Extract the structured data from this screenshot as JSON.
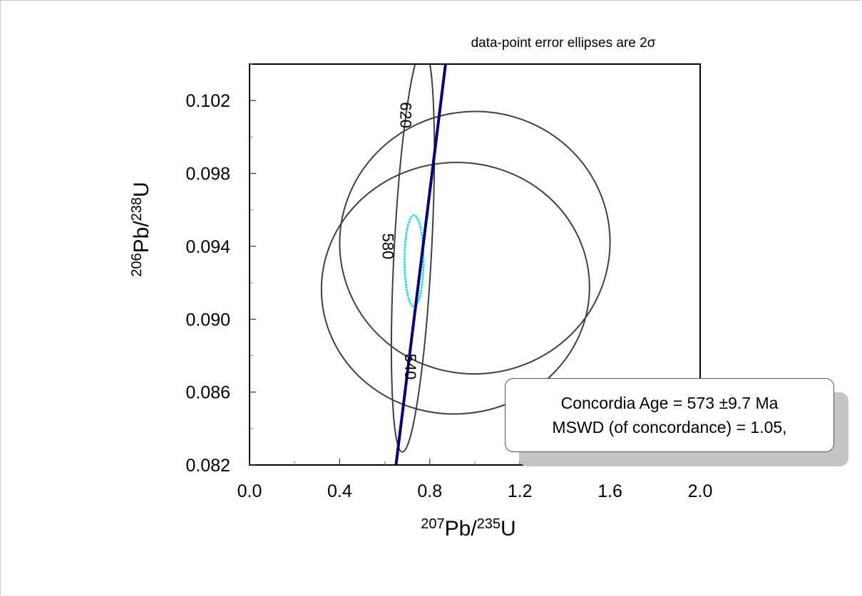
{
  "chart_data": {
    "type": "scatter",
    "title": "data-point error ellipses are 2σ",
    "xlabel": {
      "sup1": "207",
      "main1": "Pb/",
      "sup2": "235",
      "main2": "U"
    },
    "ylabel": {
      "sup1": "206",
      "main1": "Pb/",
      "sup2": "238",
      "main2": "U"
    },
    "xlim": [
      0.0,
      2.0
    ],
    "ylim": [
      0.082,
      0.104
    ],
    "x_ticks": [
      "0.0",
      "0.4",
      "0.8",
      "1.2",
      "1.6",
      "2.0"
    ],
    "x_tick_values": [
      0.0,
      0.4,
      0.8,
      1.2,
      1.6,
      2.0
    ],
    "y_ticks": [
      "0.082",
      "0.086",
      "0.090",
      "0.094",
      "0.098",
      "0.102"
    ],
    "y_tick_values": [
      0.082,
      0.086,
      0.09,
      0.094,
      0.098,
      0.102
    ],
    "concordia_curve": {
      "color": "#000080",
      "points": [
        [
          0.65,
          0.082
        ],
        [
          0.76,
          0.093
        ],
        [
          0.87,
          0.104
        ]
      ],
      "age_labels": [
        {
          "label": "540",
          "x": 0.69,
          "y": 0.0874
        },
        {
          "label": "580",
          "x": 0.59,
          "y": 0.094
        },
        {
          "label": "620",
          "x": 0.67,
          "y": 0.1012
        }
      ]
    },
    "error_ellipses": [
      {
        "cx": 1.0,
        "cy": 0.0942,
        "a": 0.6,
        "b": 0.0072,
        "angle": -4,
        "color": "#404040"
      },
      {
        "cx": 0.914,
        "cy": 0.0917,
        "a": 0.595,
        "b": 0.0069,
        "angle": -4,
        "color": "#404040"
      },
      {
        "cx": 0.725,
        "cy": 0.0938,
        "a": 0.083,
        "b": 0.0111,
        "angle": 3,
        "color": "#404040"
      },
      {
        "cx": 0.73,
        "cy": 0.0932,
        "a": 0.042,
        "b": 0.0025,
        "angle": 0,
        "color": "#00e0e0"
      }
    ]
  },
  "info_box": {
    "line1": "Concordia Age = 573 ±9.7 Ma",
    "line2": "MSWD (of concordance) = 1.05,"
  }
}
